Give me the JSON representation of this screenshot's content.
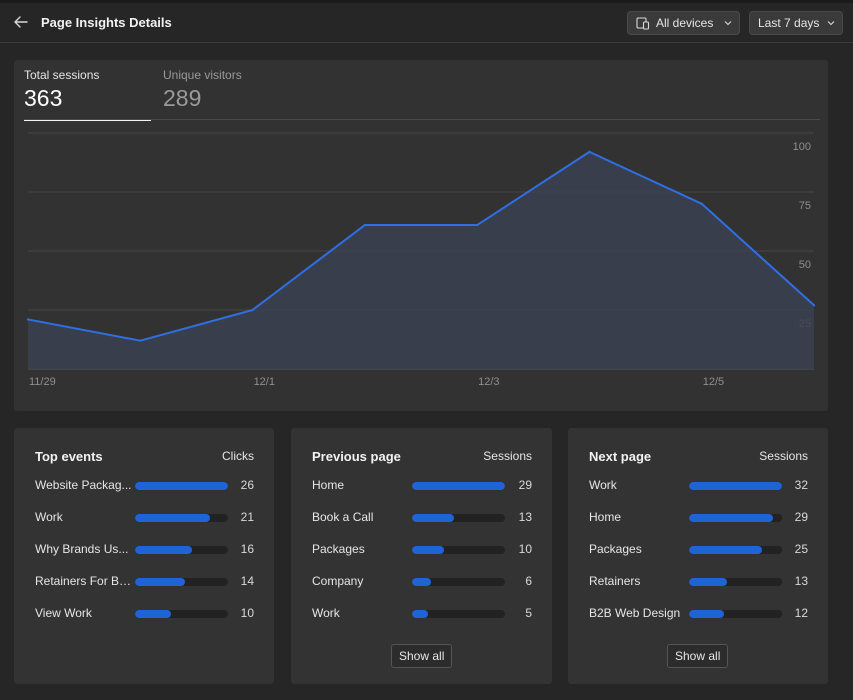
{
  "header": {
    "title": "Page Insights Details",
    "devices_label": "All devices",
    "range_label": "Last 7 days"
  },
  "tabs": [
    {
      "label": "Total sessions",
      "value": "363",
      "active": true
    },
    {
      "label": "Unique visitors",
      "value": "289",
      "active": false
    }
  ],
  "chart_data": {
    "type": "area",
    "x": [
      "11/29",
      "11/30",
      "12/1",
      "12/2",
      "12/3",
      "12/4",
      "12/5",
      "12/6"
    ],
    "xticks": [
      "11/29",
      "12/1",
      "12/3",
      "12/5"
    ],
    "series": [
      {
        "values": [
          21,
          12,
          25,
          61,
          61,
          92,
          70,
          27
        ]
      }
    ],
    "ylim": [
      0,
      100
    ],
    "yticks": [
      "100",
      "75",
      "50",
      "25"
    ],
    "grid": true,
    "colors": {
      "line": "#2f6fe4",
      "fill": "#3a4150"
    }
  },
  "panels": [
    {
      "title": "Top events",
      "metric": "Clicks",
      "max": 26,
      "rows": [
        {
          "label": "Website Packag...",
          "value": 26
        },
        {
          "label": "Work",
          "value": 21
        },
        {
          "label": "Why Brands Us...",
          "value": 16
        },
        {
          "label": "Retainers For B2...",
          "value": 14
        },
        {
          "label": "View Work",
          "value": 10
        }
      ]
    },
    {
      "title": "Previous page",
      "metric": "Sessions",
      "max": 29,
      "show_all": "Show all",
      "rows": [
        {
          "label": "Home",
          "value": 29
        },
        {
          "label": "Book a Call",
          "value": 13
        },
        {
          "label": "Packages",
          "value": 10
        },
        {
          "label": "Company",
          "value": 6
        },
        {
          "label": "Work",
          "value": 5
        }
      ]
    },
    {
      "title": "Next page",
      "metric": "Sessions",
      "max": 32,
      "show_all": "Show all",
      "rows": [
        {
          "label": "Work",
          "value": 32
        },
        {
          "label": "Home",
          "value": 29
        },
        {
          "label": "Packages",
          "value": 25
        },
        {
          "label": "Retainers",
          "value": 13
        },
        {
          "label": "B2B Web Design",
          "value": 12
        }
      ]
    }
  ],
  "colors": {
    "bar": "#1f64d6",
    "track": "#222222",
    "accent": "#2f6fe4"
  }
}
